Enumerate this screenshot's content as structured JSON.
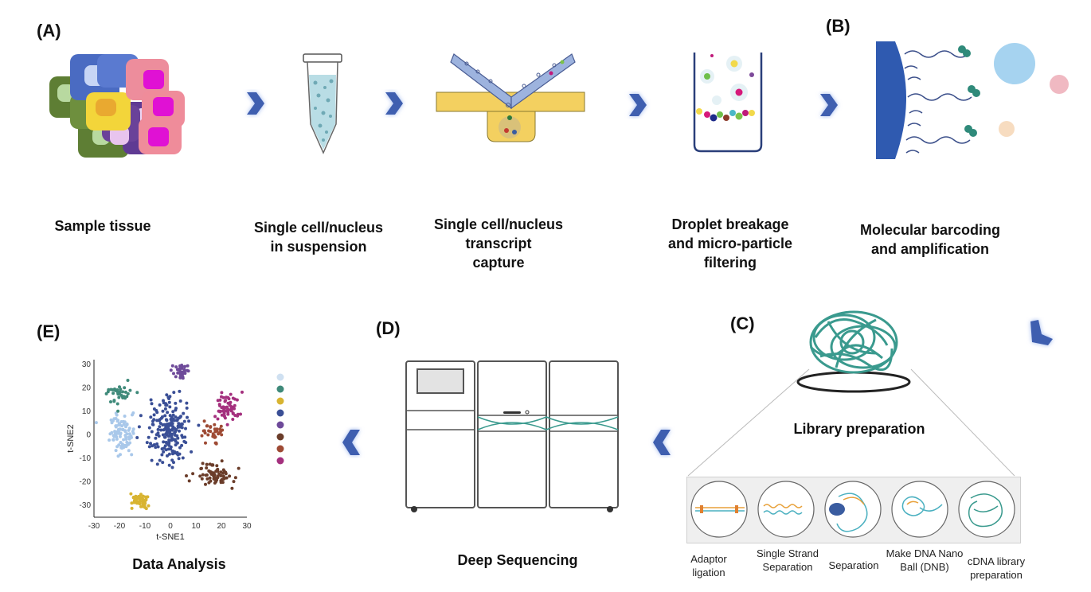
{
  "labels": {
    "a": "(A)",
    "b": "(B)",
    "c": "(C)",
    "d": "(D)",
    "e": "(E)"
  },
  "captions": {
    "sample_tissue": "Sample tissue",
    "suspension": "Single cell/nucleus\nin  suspension",
    "capture": "Single cell/nucleus\ntranscript\ncapture",
    "droplet": "Droplet breakage\nand micro-particle\nfiltering",
    "barcoding": "Molecular barcoding\nand amplification",
    "library": "Library preparation",
    "sequencing": "Deep Sequencing",
    "analysis": "Data Analysis"
  },
  "library_steps": [
    {
      "label": "Adaptor\nligation"
    },
    {
      "label": "Single Strand\nSeparation"
    },
    {
      "label": "Separation"
    },
    {
      "label": "Make DNA Nano\nBall (DNB)"
    },
    {
      "label": "cDNA library\npreparation"
    }
  ],
  "chart_data": {
    "type": "scatter",
    "xlabel": "t-SNE1",
    "ylabel": "t-SNE2",
    "xlim": [
      -30,
      30
    ],
    "ylim": [
      -35,
      32
    ],
    "xticks": [
      "-30",
      "-20",
      "-10",
      "0",
      "10",
      "20",
      "30"
    ],
    "yticks": [
      "30",
      "20",
      "10",
      "0",
      "-10",
      "-20",
      "-30"
    ],
    "clusters": [
      {
        "color": "#a9c8ea",
        "center": [
          -19,
          0
        ],
        "spread": [
          4,
          7
        ],
        "n": 90
      },
      {
        "color": "#3f8a7a",
        "center": [
          -20,
          18
        ],
        "spread": [
          3.5,
          3
        ],
        "n": 40
      },
      {
        "color": "#d8b431",
        "center": [
          -12,
          -28
        ],
        "spread": [
          3.5,
          3
        ],
        "n": 45
      },
      {
        "color": "#3a4f96",
        "center": [
          -1,
          2
        ],
        "spread": [
          7,
          11
        ],
        "n": 200
      },
      {
        "color": "#6e4a9a",
        "center": [
          4,
          27
        ],
        "spread": [
          3,
          2.5
        ],
        "n": 30
      },
      {
        "color": "#6b3d2a",
        "center": [
          18,
          -17
        ],
        "spread": [
          6,
          4
        ],
        "n": 70
      },
      {
        "color": "#9e4a34",
        "center": [
          16,
          1
        ],
        "spread": [
          3,
          4
        ],
        "n": 35
      },
      {
        "color": "#a4307e",
        "center": [
          22,
          12
        ],
        "spread": [
          4,
          5
        ],
        "n": 60
      }
    ],
    "legend_colors": [
      "#cfe0f1",
      "#3f8a7a",
      "#d8b431",
      "#3a4f96",
      "#6e4a9a",
      "#6b3d2a",
      "#9e4a34",
      "#a4307e"
    ],
    "legend_placement": "right"
  }
}
